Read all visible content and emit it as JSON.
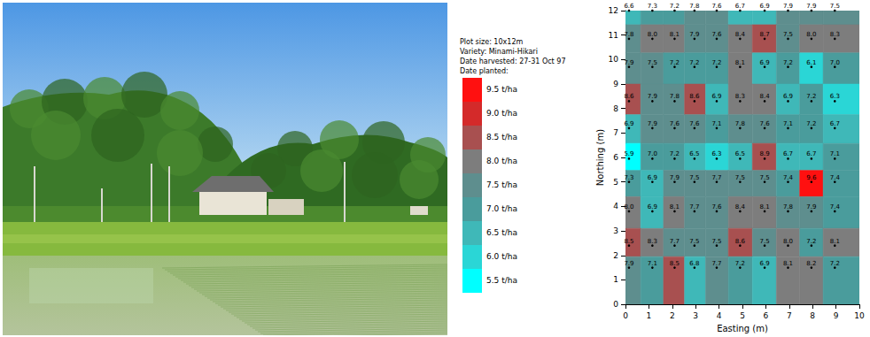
{
  "chart_data": {
    "type": "contour",
    "annotations": [
      "Plot size: 10x12m",
      "Variety: Minami-Hikari",
      "Date harvested: 27-31 Oct 97",
      "Date planted:"
    ],
    "xlabel": "Easting (m)",
    "ylabel": "Northing (m)",
    "xlim": [
      0,
      10
    ],
    "ylim": [
      0,
      12
    ],
    "xticks": [
      0,
      1,
      2,
      3,
      4,
      5,
      6,
      7,
      8,
      9,
      10
    ],
    "yticks": [
      0,
      1,
      2,
      3,
      4,
      5,
      6,
      7,
      8,
      9,
      10,
      11,
      12
    ],
    "x": [
      0.15,
      1.15,
      2.1,
      2.95,
      3.9,
      4.9,
      5.95,
      6.95,
      7.95,
      8.95
    ],
    "y": [
      12,
      10.85,
      9.7,
      8.3,
      7.2,
      5.95,
      5.0,
      3.8,
      2.4,
      1.5
    ],
    "values": [
      [
        6.6,
        7.3,
        7.2,
        7.8,
        7.6,
        6.7,
        6.9,
        7.9,
        7.9,
        7.5
      ],
      [
        7.8,
        8.0,
        8.1,
        7.9,
        7.6,
        8.4,
        8.7,
        7.5,
        8.0,
        8.3
      ],
      [
        7.9,
        7.5,
        7.2,
        7.2,
        7.2,
        8.1,
        6.9,
        7.2,
        6.1,
        7.0
      ],
      [
        8.6,
        7.9,
        7.8,
        8.6,
        6.9,
        8.3,
        8.4,
        6.9,
        7.2,
        6.3
      ],
      [
        6.9,
        7.9,
        7.6,
        7.6,
        7.1,
        7.8,
        7.6,
        7.1,
        7.2,
        6.7
      ],
      [
        5.9,
        7.0,
        7.2,
        6.5,
        6.3,
        6.5,
        8.9,
        6.7,
        6.7,
        7.1
      ],
      [
        7.3,
        6.9,
        7.9,
        7.5,
        7.7,
        7.5,
        7.5,
        7.4,
        9.6,
        7.4
      ],
      [
        8.0,
        6.9,
        8.1,
        7.7,
        7.6,
        8.4,
        8.1,
        7.8,
        7.9,
        7.4
      ],
      [
        8.5,
        8.3,
        7.7,
        7.5,
        7.5,
        8.6,
        7.5,
        8.0,
        7.2,
        8.1
      ],
      [
        7.9,
        7.1,
        8.5,
        6.8,
        7.7,
        7.2,
        6.9,
        8.1,
        8.2,
        7.2
      ]
    ],
    "data_labels": true,
    "color_bar": {
      "values": [
        9.5,
        9.0,
        8.5,
        8.0,
        7.5,
        7.0,
        6.5,
        6.0,
        5.5
      ],
      "labels": [
        "9.5 t/ha",
        "9.0 t/ha",
        "8.5 t/ha",
        "8.0 t/ha",
        "7.5 t/ha",
        "7.0 t/ha",
        "6.5 t/ha",
        "6.0 t/ha",
        "5.5 t/ha"
      ],
      "colors": [
        "#ff1010",
        "#d42a2a",
        "#a85050",
        "#7d7d7d",
        "#5e8e8e",
        "#4a9c9c",
        "#3fb8b8",
        "#2ad6d6",
        "#00ffff"
      ]
    }
  }
}
